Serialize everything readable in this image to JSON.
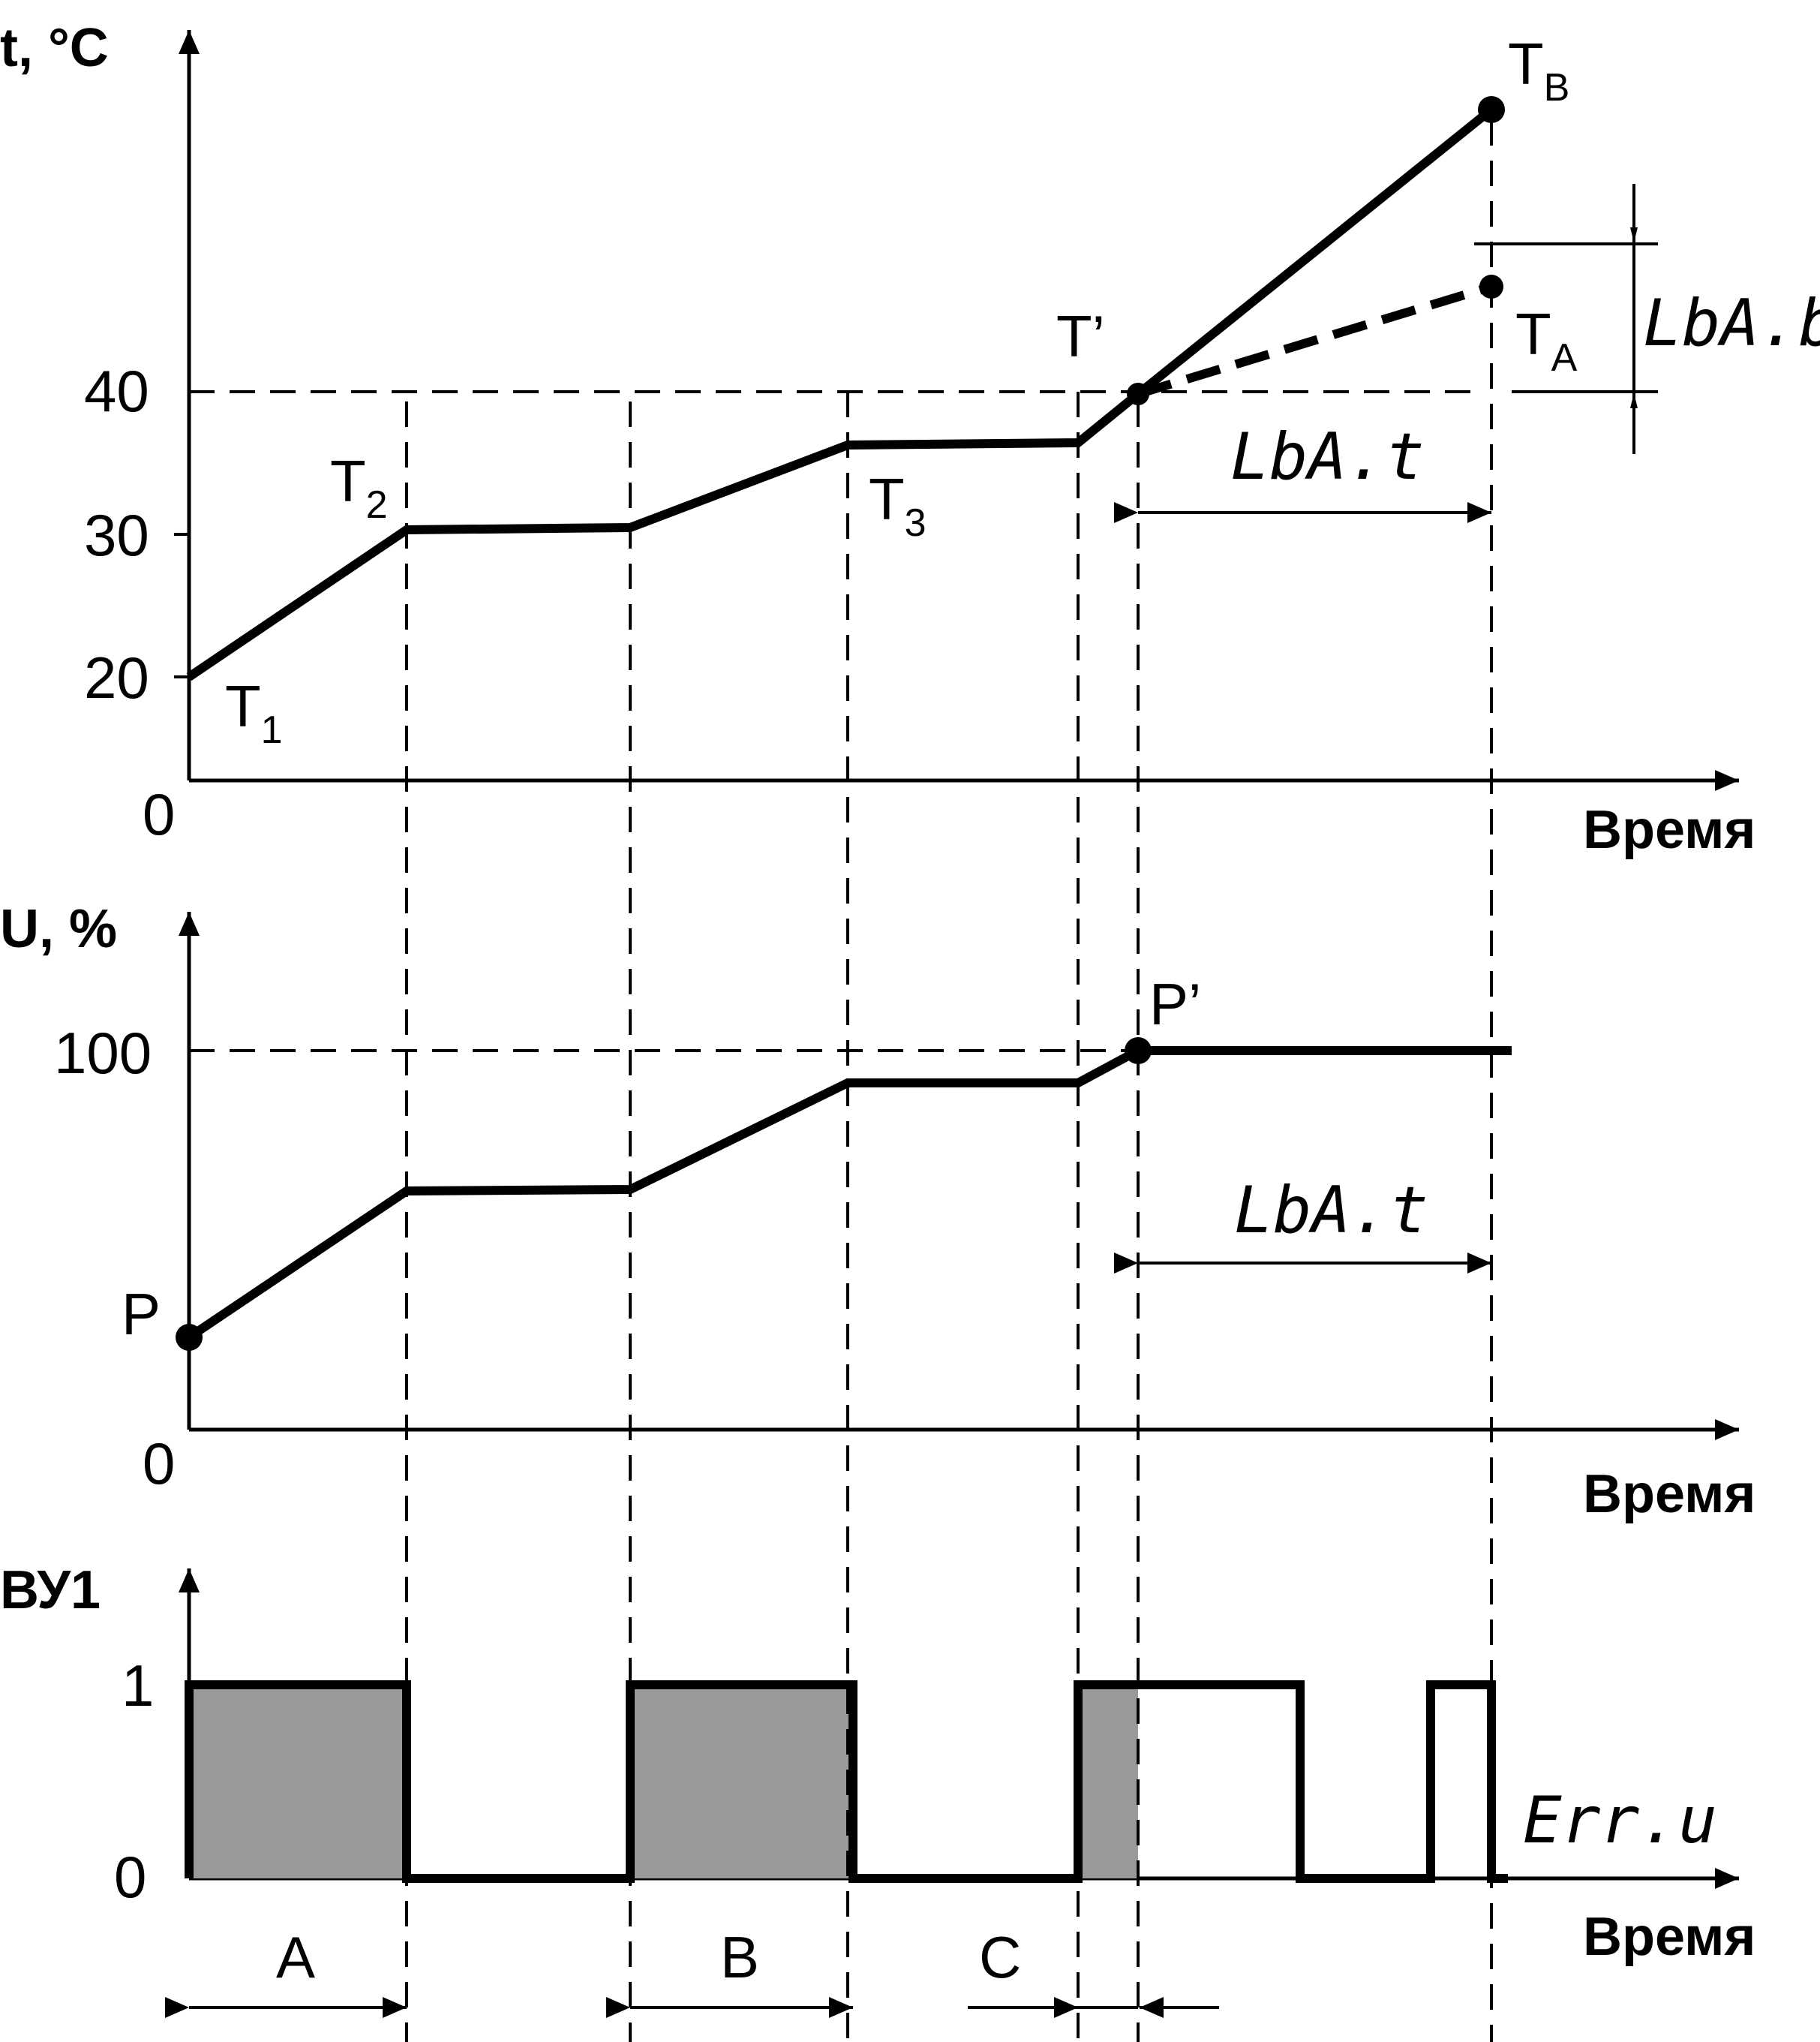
{
  "colors": {
    "ink": "#000000",
    "fill_on": "#999999",
    "paper": "#ffffff"
  },
  "temperature_panel": {
    "y_axis_label": "t, °C",
    "x_axis_label": "Время",
    "y_ticks": [
      "40",
      "30",
      "20"
    ],
    "origin": "0",
    "points": {
      "t1": "T",
      "t1_sub": "1",
      "t2": "T",
      "t2_sub": "2",
      "t3": "T",
      "t3_sub": "3",
      "t_prime": "T’",
      "tb": "T",
      "tb_sub": "B",
      "ta": "T",
      "ta_sub": "A"
    },
    "param_lba_b": "LbA.b",
    "param_lba_t": "LbA.t"
  },
  "output_panel": {
    "y_axis_label": "U, %",
    "x_axis_label": "Время",
    "y_ticks": [
      "100"
    ],
    "origin": "0",
    "point_p": "P",
    "point_p_prime": "P’",
    "param_lba_t": "LbA.t"
  },
  "relay_panel": {
    "y_axis_label": "ВУ1",
    "x_axis_label": "Время",
    "y_ticks": [
      "1",
      "0"
    ],
    "error_code": "Err.u",
    "intervals": [
      "A",
      "B",
      "C"
    ]
  }
}
